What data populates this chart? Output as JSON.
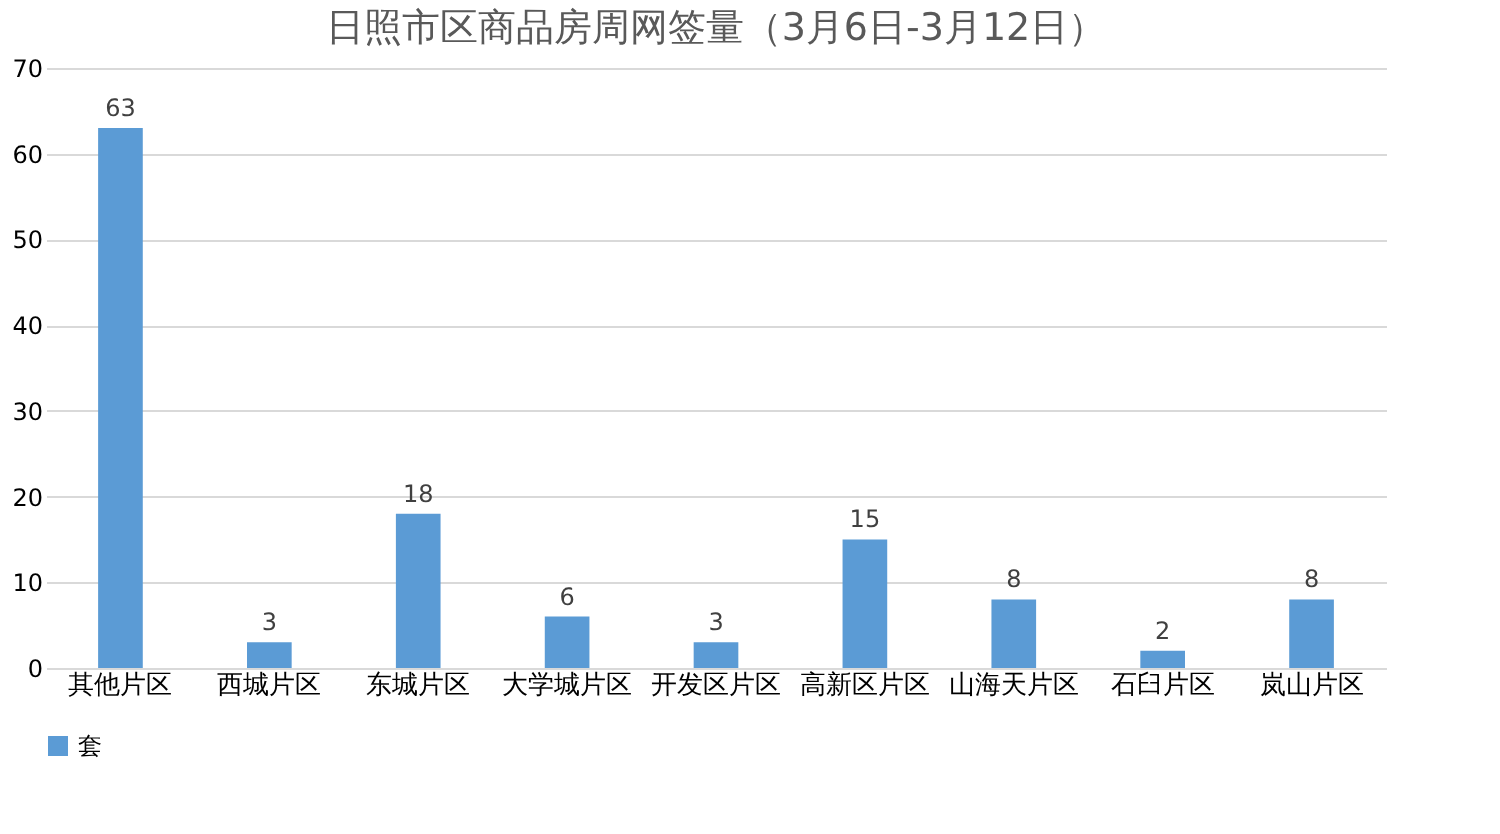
{
  "chart_data": {
    "type": "bar",
    "title": "日照市区商品房周网签量（3月6日-3月12日）",
    "categories": [
      "其他片区",
      "西城片区",
      "东城片区",
      "大学城片区",
      "开发区片区",
      "高新区片区",
      "山海天片区",
      "石臼片区",
      "岚山片区"
    ],
    "series": [
      {
        "name": "套",
        "color": "#5b9bd5",
        "values": [
          63,
          3,
          18,
          6,
          3,
          15,
          8,
          2,
          8
        ]
      }
    ],
    "ylim": [
      0,
      70
    ],
    "yticks": [
      0,
      10,
      20,
      30,
      40,
      50,
      60,
      70
    ],
    "grid": "y",
    "legend": "bottom",
    "data_labels": true
  }
}
